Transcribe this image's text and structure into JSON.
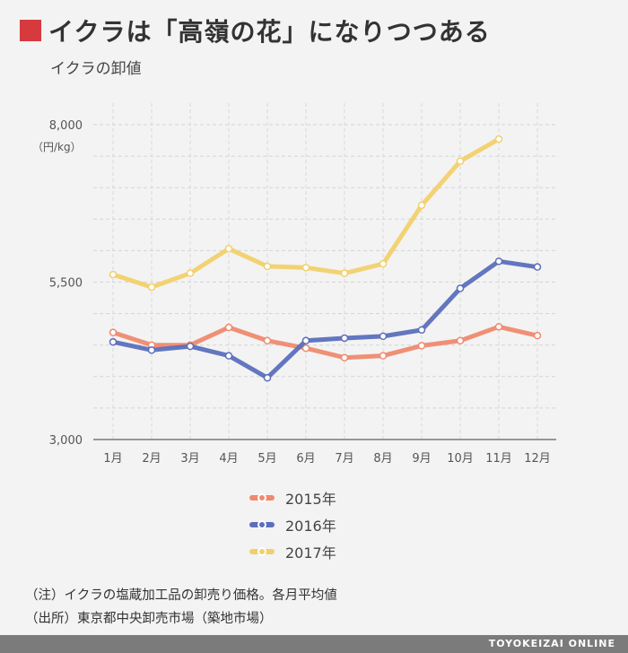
{
  "header": {
    "title": "イクラは「高嶺の花」になりつつある",
    "subtitle": "イクラの卸値"
  },
  "chart_data": {
    "type": "line",
    "title": "イクラは「高嶺の花」になりつつある",
    "subtitle": "イクラの卸値",
    "ylabel": "（円/kg）",
    "ylim": [
      3000,
      8000
    ],
    "yticks": [
      3000,
      5500,
      8000
    ],
    "ytick_labels": [
      "3,000",
      "5,500",
      "8,000"
    ],
    "categories": [
      "1月",
      "2月",
      "3月",
      "4月",
      "5月",
      "6月",
      "7月",
      "8月",
      "9月",
      "10月",
      "11月",
      "12月"
    ],
    "grid": true,
    "legend_position": "bottom",
    "series": [
      {
        "name": "2015年",
        "color": "#ee8a6f",
        "values": [
          4700,
          4500,
          4500,
          4780,
          4570,
          4450,
          4300,
          4330,
          4490,
          4570,
          4790,
          4650
        ]
      },
      {
        "name": "2016年",
        "color": "#5b6fbc",
        "values": [
          4550,
          4420,
          4480,
          4330,
          3980,
          4570,
          4610,
          4640,
          4740,
          5400,
          5830,
          5740
        ]
      },
      {
        "name": "2017年",
        "color": "#f1d06c",
        "values": [
          5620,
          5420,
          5640,
          6030,
          5750,
          5730,
          5640,
          5790,
          6720,
          7420,
          7770,
          null
        ]
      }
    ]
  },
  "notes": {
    "line1": "（注）イクラの塩蔵加工品の卸売り価格。各月平均値",
    "line2": "（出所）東京都中央卸売市場（築地市場）"
  },
  "footer": {
    "brand": "TOYOKEIZAI ONLINE"
  }
}
